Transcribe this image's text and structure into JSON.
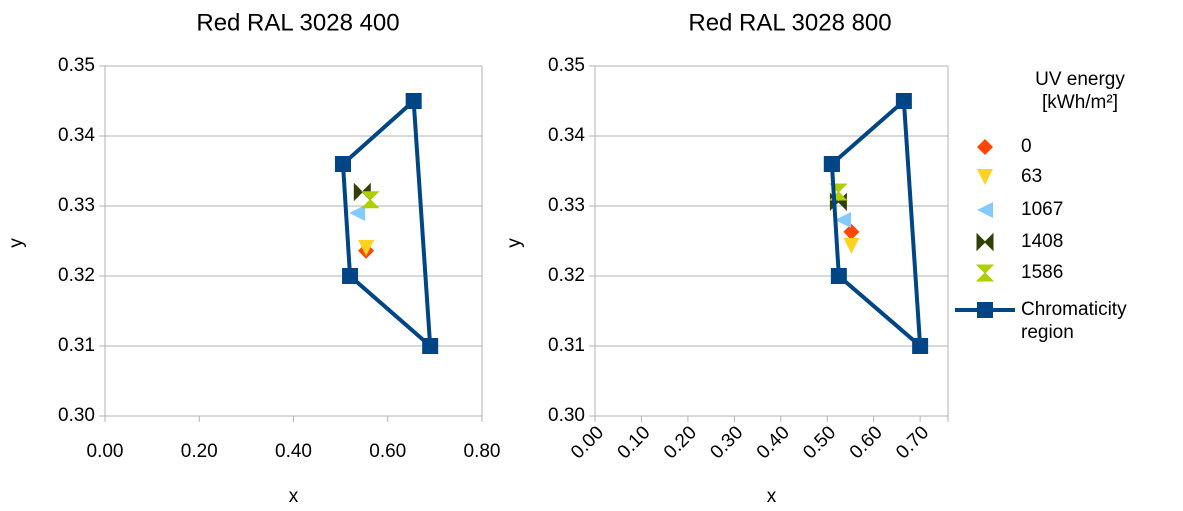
{
  "chart_data": [
    {
      "type": "scatter",
      "title": "Red RAL 3028 400",
      "x_label": "x",
      "y_label": "y",
      "xlim": [
        0,
        0.8
      ],
      "ylim": [
        0.3,
        0.35
      ],
      "xticks": [
        {
          "value": 0,
          "label": "0.00"
        },
        {
          "value": 0.2,
          "label": "0.20"
        },
        {
          "value": 0.4,
          "label": "0.40"
        },
        {
          "value": 0.6,
          "label": "0.60"
        },
        {
          "value": 0.8,
          "label": "0.80"
        }
      ],
      "yticks": [
        {
          "value": 0.3,
          "label": "0.30"
        },
        {
          "value": 0.31,
          "label": "0.31"
        },
        {
          "value": 0.32,
          "label": "0.32"
        },
        {
          "value": 0.33,
          "label": "0.33"
        },
        {
          "value": 0.34,
          "label": "0.34"
        },
        {
          "value": 0.35,
          "label": "0.35"
        }
      ],
      "grid": true,
      "series": [
        {
          "name": "0",
          "color": "#ff4500",
          "marker": "diamond",
          "x": [
            0.554
          ],
          "values": [
            0.3236
          ]
        },
        {
          "name": "63",
          "color": "#ffd320",
          "marker": "triangle-down",
          "x": [
            0.554
          ],
          "values": [
            0.324
          ]
        },
        {
          "name": "1067",
          "color": "#83caff",
          "marker": "triangle-left",
          "x": [
            0.535
          ],
          "values": [
            0.329
          ]
        },
        {
          "name": "1408",
          "color": "#314004",
          "marker": "bowtie",
          "x": [
            0.546
          ],
          "values": [
            0.332
          ]
        },
        {
          "name": "1586",
          "color": "#aecf00",
          "marker": "hourglass",
          "x": [
            0.563
          ],
          "values": [
            0.3309
          ]
        },
        {
          "name": "Chromaticity region",
          "color": "#004586",
          "marker": "square",
          "line": true,
          "x": [
            0.505,
            0.655,
            0.69,
            0.52,
            0.505
          ],
          "values": [
            0.336,
            0.345,
            0.31,
            0.32,
            0.336
          ]
        }
      ]
    },
    {
      "type": "scatter",
      "title": "Red RAL 3028 800",
      "x_label": "x",
      "y_label": "y",
      "legend_title": "UV energy [kWh/m²]",
      "legend": "right",
      "xlim": [
        0,
        0.76
      ],
      "ylim": [
        0.3,
        0.35
      ],
      "xtick_rotation": 45,
      "xticks": [
        {
          "value": 0,
          "label": "0.00"
        },
        {
          "value": 0.1,
          "label": "0.10"
        },
        {
          "value": 0.2,
          "label": "0.20"
        },
        {
          "value": 0.3,
          "label": "0.30"
        },
        {
          "value": 0.4,
          "label": "0.40"
        },
        {
          "value": 0.5,
          "label": "0.50"
        },
        {
          "value": 0.6,
          "label": "0.60"
        },
        {
          "value": 0.7,
          "label": "0.70"
        }
      ],
      "yticks": [
        {
          "value": 0.3,
          "label": "0.30"
        },
        {
          "value": 0.31,
          "label": "0.31"
        },
        {
          "value": 0.32,
          "label": "0.32"
        },
        {
          "value": 0.33,
          "label": "0.33"
        },
        {
          "value": 0.34,
          "label": "0.34"
        },
        {
          "value": 0.35,
          "label": "0.35"
        }
      ],
      "grid": true,
      "series": [
        {
          "name": "0",
          "color": "#ff4500",
          "marker": "diamond",
          "x": [
            0.552
          ],
          "values": [
            0.3263
          ]
        },
        {
          "name": "63",
          "color": "#ffd320",
          "marker": "triangle-down",
          "x": [
            0.552
          ],
          "values": [
            0.3243
          ]
        },
        {
          "name": "1067",
          "color": "#83caff",
          "marker": "triangle-left",
          "x": [
            0.534
          ],
          "values": [
            0.328
          ]
        },
        {
          "name": "1408",
          "color": "#314004",
          "marker": "bowtie",
          "x": [
            0.524
          ],
          "values": [
            0.3306
          ]
        },
        {
          "name": "1586",
          "color": "#aecf00",
          "marker": "hourglass",
          "x": [
            0.524
          ],
          "values": [
            0.332
          ]
        },
        {
          "name": "Chromaticity region",
          "color": "#004586",
          "marker": "square",
          "line": true,
          "x": [
            0.51,
            0.665,
            0.7,
            0.525,
            0.51
          ],
          "values": [
            0.336,
            0.345,
            0.31,
            0.32,
            0.336
          ]
        }
      ]
    }
  ]
}
